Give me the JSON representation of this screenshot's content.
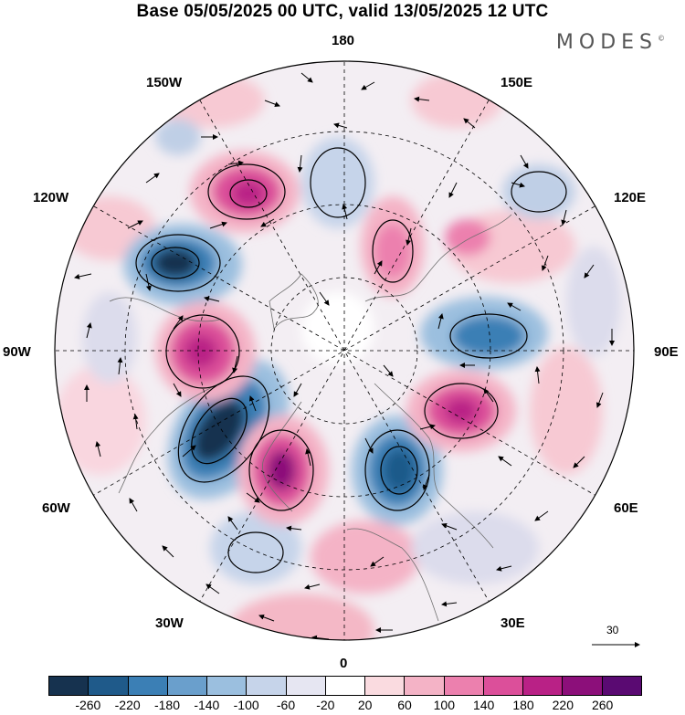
{
  "title": "Base 05/05/2025 00 UTC, valid 13/05/2025 12 UTC",
  "brand": "MODES",
  "longitude_labels": {
    "lon_180": "180",
    "lon_150w": "150W",
    "lon_150e": "150E",
    "lon_120w": "120W",
    "lon_120e": "120E",
    "lon_90w": "90W",
    "lon_90e": "90E",
    "lon_60w": "60W",
    "lon_60e": "60E",
    "lon_30w": "30W",
    "lon_30e": "30E",
    "lon_0": "0"
  },
  "vector_scale_label": "30",
  "colorbar": {
    "colors": [
      "#16324f",
      "#1f5a8a",
      "#3b7fb5",
      "#6a9fcc",
      "#9bbfdf",
      "#c6d4ea",
      "#e6e6f2",
      "#ffffff",
      "#fadbe0",
      "#f4b3c6",
      "#ec80ae",
      "#dc4f9a",
      "#b92186",
      "#8c0f7a",
      "#5a0a72"
    ],
    "ticks": [
      "-260",
      "-220",
      "-180",
      "-140",
      "-100",
      "-60",
      "-20",
      "20",
      "60",
      "100",
      "140",
      "180",
      "220",
      "260"
    ]
  },
  "colors": {
    "negative_strong": "#1e4f7c",
    "negative_light": "#c6d4ea",
    "positive_light": "#f4b3c6",
    "positive_strong": "#a01d82"
  }
}
